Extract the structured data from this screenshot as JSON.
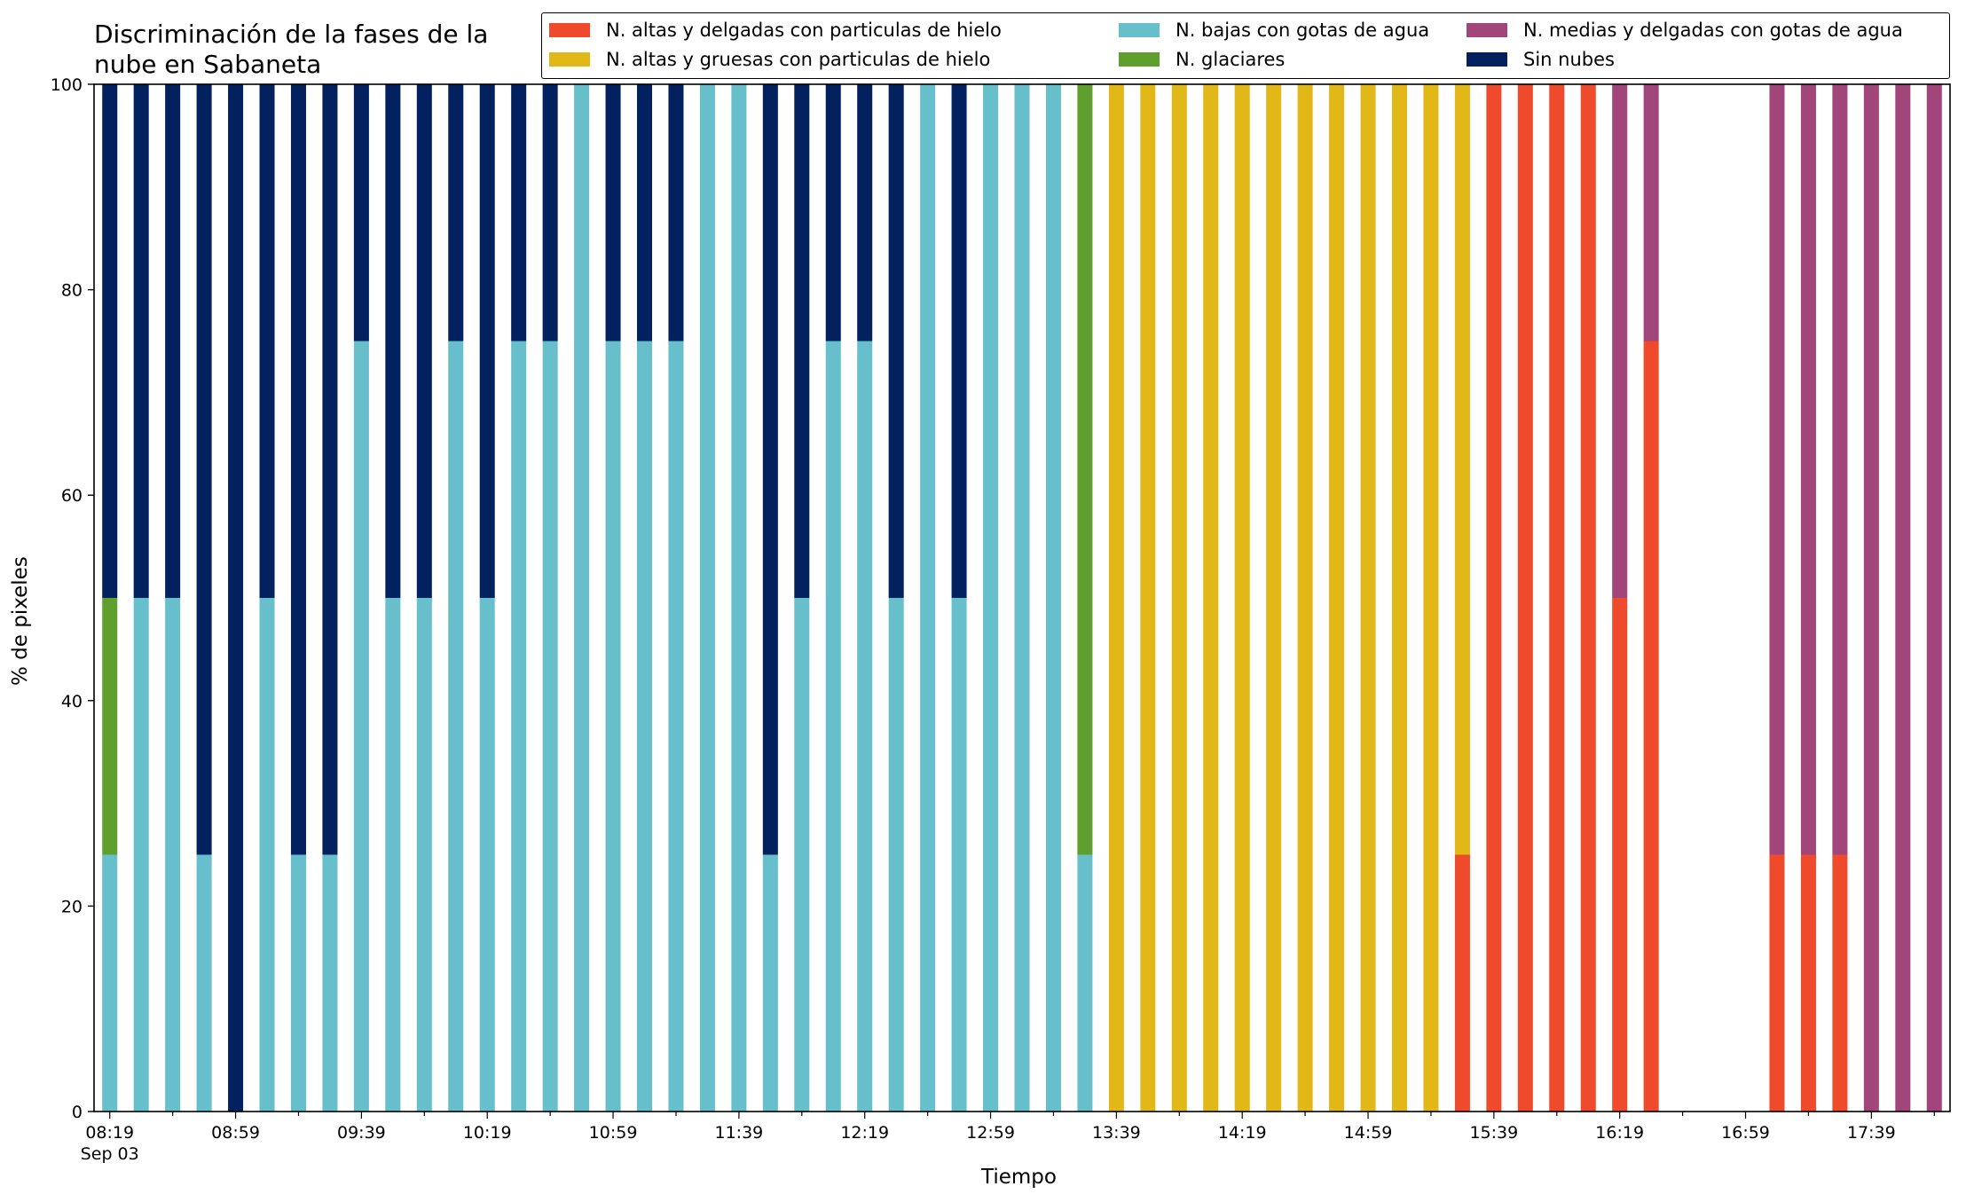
{
  "chart_data": {
    "type": "bar",
    "stacked": true,
    "title": [
      "Discriminación de la fases de la",
      "nube en Sabaneta"
    ],
    "xlabel": "Tiempo",
    "ylabel": "% de pixeles",
    "ylim": [
      0,
      100
    ],
    "yticks": [
      0,
      20,
      40,
      60,
      80,
      100
    ],
    "x_tick_labels": [
      "08:19",
      "08:59",
      "09:39",
      "10:19",
      "10:59",
      "11:39",
      "12:19",
      "12:59",
      "13:39",
      "14:19",
      "14:59",
      "15:39",
      "16:19",
      "16:59",
      "17:39"
    ],
    "x_date_label": "Sep 03",
    "x_slot_count": 59,
    "legend_position": "top-right",
    "series": [
      {
        "name": "N. altas y delgadas con particulas de hielo",
        "color": "#EE4A2B",
        "values": [
          0,
          0,
          0,
          0,
          0,
          0,
          0,
          0,
          0,
          0,
          0,
          0,
          0,
          0,
          0,
          0,
          0,
          0,
          0,
          0,
          0,
          0,
          0,
          0,
          0,
          0,
          0,
          0,
          0,
          0,
          0,
          0,
          0,
          0,
          0,
          0,
          0,
          0,
          0,
          0,
          0,
          0,
          0,
          25,
          100,
          100,
          100,
          100,
          50,
          75,
          null,
          null,
          null,
          25,
          25,
          25,
          0,
          0,
          0
        ]
      },
      {
        "name": "N. altas y gruesas con particulas de hielo",
        "color": "#E2B718",
        "values": [
          0,
          0,
          0,
          0,
          0,
          0,
          0,
          0,
          0,
          0,
          0,
          0,
          0,
          0,
          0,
          0,
          0,
          0,
          0,
          0,
          0,
          0,
          0,
          0,
          0,
          0,
          0,
          0,
          0,
          0,
          0,
          0,
          100,
          100,
          100,
          100,
          100,
          100,
          100,
          100,
          100,
          100,
          100,
          75,
          0,
          0,
          0,
          0,
          0,
          0,
          null,
          null,
          null,
          0,
          0,
          0,
          0,
          0,
          0
        ]
      },
      {
        "name": "N. bajas con gotas de agua",
        "color": "#66BFCB",
        "values": [
          25,
          50,
          50,
          25,
          0,
          50,
          25,
          25,
          75,
          50,
          50,
          75,
          50,
          75,
          75,
          100,
          75,
          75,
          75,
          100,
          100,
          25,
          50,
          75,
          75,
          50,
          100,
          50,
          100,
          100,
          100,
          25,
          0,
          0,
          0,
          0,
          0,
          0,
          0,
          0,
          0,
          0,
          0,
          0,
          0,
          0,
          0,
          0,
          0,
          0,
          null,
          null,
          null,
          0,
          0,
          0,
          0,
          0,
          0
        ]
      },
      {
        "name": "N. glaciares",
        "color": "#5E9F2D",
        "values": [
          25,
          0,
          0,
          0,
          0,
          0,
          0,
          0,
          0,
          0,
          0,
          0,
          0,
          0,
          0,
          0,
          0,
          0,
          0,
          0,
          0,
          0,
          0,
          0,
          0,
          0,
          0,
          0,
          0,
          0,
          0,
          75,
          0,
          0,
          0,
          0,
          0,
          0,
          0,
          0,
          0,
          0,
          0,
          0,
          0,
          0,
          0,
          0,
          0,
          0,
          null,
          null,
          null,
          0,
          0,
          0,
          0,
          0,
          0
        ]
      },
      {
        "name": "N. medias y delgadas con gotas de agua",
        "color": "#A2457A",
        "values": [
          0,
          0,
          0,
          0,
          0,
          0,
          0,
          0,
          0,
          0,
          0,
          0,
          0,
          0,
          0,
          0,
          0,
          0,
          0,
          0,
          0,
          0,
          0,
          0,
          0,
          0,
          0,
          0,
          0,
          0,
          0,
          0,
          0,
          0,
          0,
          0,
          0,
          0,
          0,
          0,
          0,
          0,
          0,
          0,
          0,
          0,
          0,
          0,
          50,
          25,
          null,
          null,
          null,
          75,
          75,
          75,
          100,
          100,
          100
        ]
      },
      {
        "name": "Sin nubes",
        "color": "#02215E",
        "values": [
          50,
          50,
          50,
          75,
          100,
          50,
          75,
          75,
          25,
          50,
          50,
          25,
          50,
          25,
          25,
          0,
          25,
          25,
          25,
          0,
          0,
          75,
          50,
          25,
          25,
          50,
          0,
          50,
          0,
          0,
          0,
          0,
          0,
          0,
          0,
          0,
          0,
          0,
          0,
          0,
          0,
          0,
          0,
          0,
          0,
          0,
          0,
          0,
          0,
          0,
          null,
          null,
          null,
          0,
          0,
          0,
          0,
          0,
          0
        ]
      }
    ]
  }
}
